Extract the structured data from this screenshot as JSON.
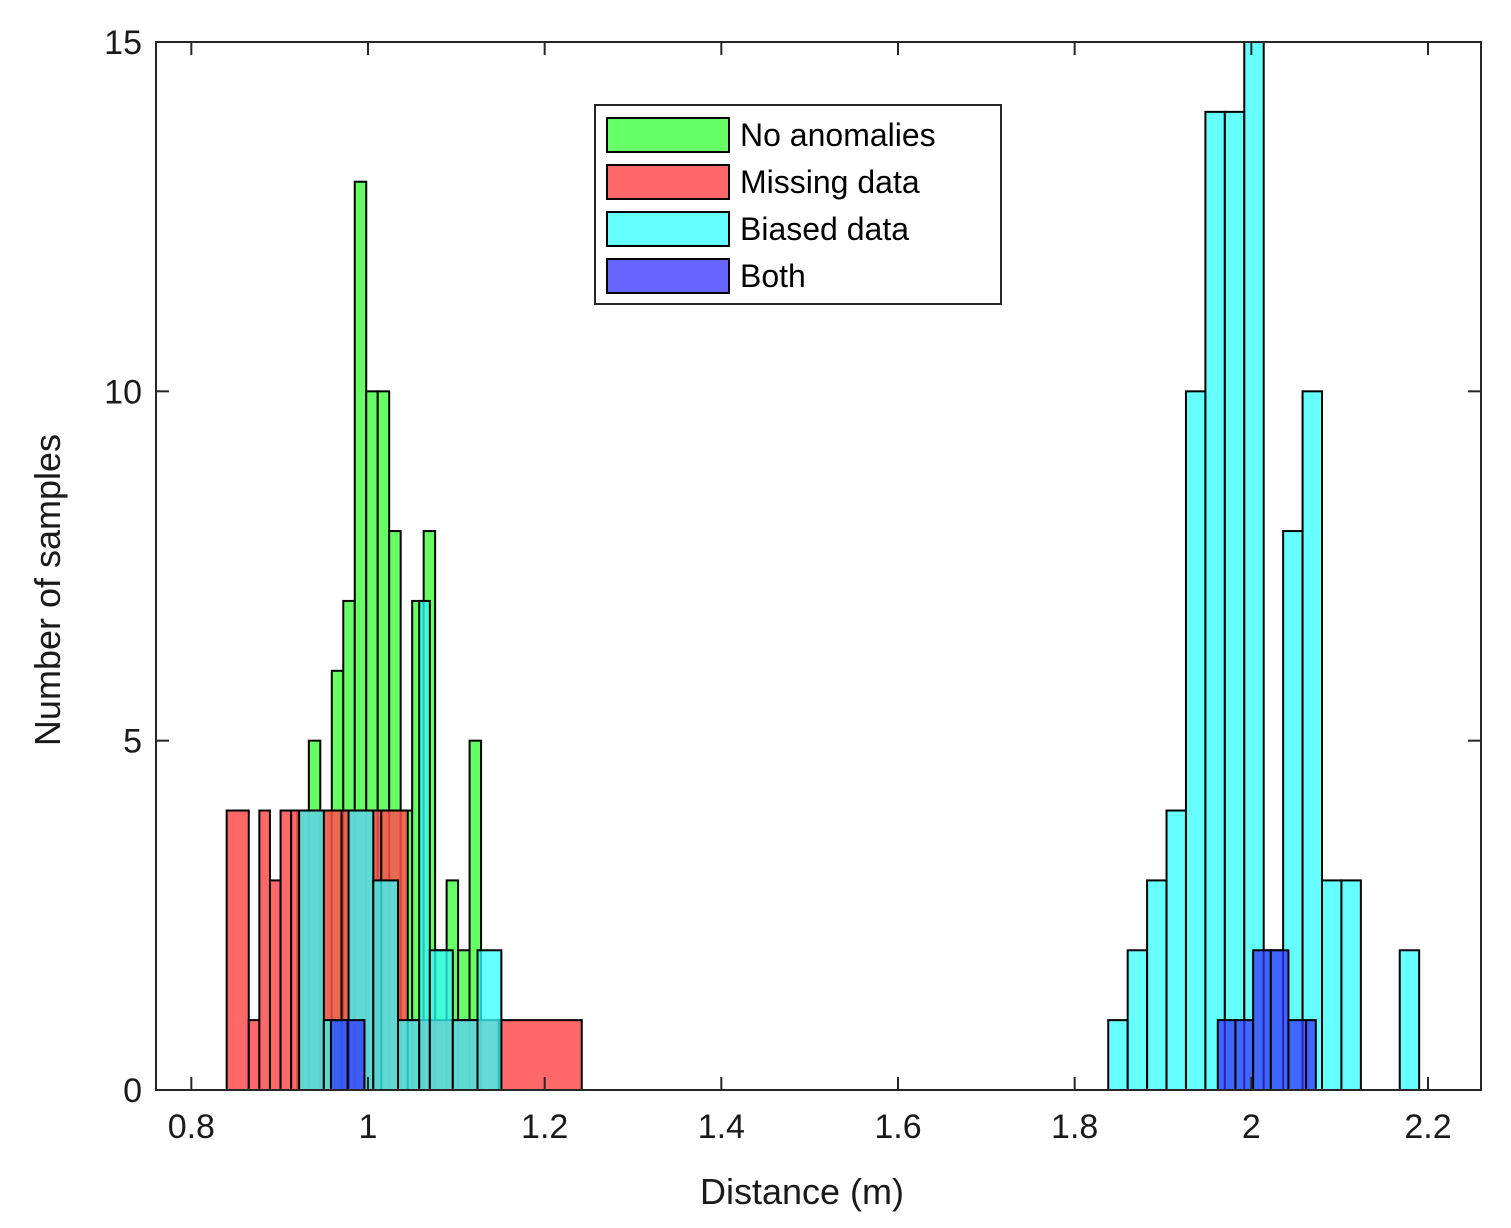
{
  "chart_data": {
    "type": "histogram",
    "title": "",
    "xlabel": "Distance (m)",
    "ylabel": "Number of samples",
    "xlim": [
      0.76,
      2.26
    ],
    "ylim": [
      0,
      15
    ],
    "xticks": [
      {
        "value": 0.8,
        "label": "0.8"
      },
      {
        "value": 1.0,
        "label": "1"
      },
      {
        "value": 1.2,
        "label": "1.2"
      },
      {
        "value": 1.4,
        "label": "1.4"
      },
      {
        "value": 1.6,
        "label": "1.6"
      },
      {
        "value": 1.8,
        "label": "1.8"
      },
      {
        "value": 2.0,
        "label": "2"
      },
      {
        "value": 2.2,
        "label": "2.2"
      }
    ],
    "yticks": [
      {
        "value": 0,
        "label": "0"
      },
      {
        "value": 5,
        "label": "5"
      },
      {
        "value": 10,
        "label": "10"
      },
      {
        "value": 15,
        "label": "15"
      }
    ],
    "legend_position": "top-center",
    "series": [
      {
        "name": "No anomalies",
        "color": "#66ff66",
        "opacity": 1,
        "bins": [
          {
            "x0": 0.92,
            "x1": 0.933,
            "count": 4
          },
          {
            "x0": 0.933,
            "x1": 0.946,
            "count": 5
          },
          {
            "x0": 0.946,
            "x1": 0.959,
            "count": 4
          },
          {
            "x0": 0.959,
            "x1": 0.972,
            "count": 6
          },
          {
            "x0": 0.972,
            "x1": 0.985,
            "count": 7
          },
          {
            "x0": 0.985,
            "x1": 0.998,
            "count": 13
          },
          {
            "x0": 0.998,
            "x1": 1.011,
            "count": 10
          },
          {
            "x0": 1.011,
            "x1": 1.024,
            "count": 10
          },
          {
            "x0": 1.024,
            "x1": 1.037,
            "count": 8
          },
          {
            "x0": 1.037,
            "x1": 1.05,
            "count": 4
          },
          {
            "x0": 1.05,
            "x1": 1.063,
            "count": 7
          },
          {
            "x0": 1.063,
            "x1": 1.076,
            "count": 8
          },
          {
            "x0": 1.076,
            "x1": 1.089,
            "count": 2
          },
          {
            "x0": 1.089,
            "x1": 1.102,
            "count": 3
          },
          {
            "x0": 1.102,
            "x1": 1.115,
            "count": 2
          },
          {
            "x0": 1.115,
            "x1": 1.128,
            "count": 5
          }
        ]
      },
      {
        "name": "Missing data",
        "color": "#ff4d4d",
        "opacity": 0.85,
        "bins": [
          {
            "x0": 0.84,
            "x1": 0.865,
            "count": 4
          },
          {
            "x0": 0.865,
            "x1": 0.877,
            "count": 1
          },
          {
            "x0": 0.877,
            "x1": 0.889,
            "count": 4
          },
          {
            "x0": 0.889,
            "x1": 0.901,
            "count": 3
          },
          {
            "x0": 0.901,
            "x1": 0.913,
            "count": 4
          },
          {
            "x0": 0.913,
            "x1": 0.97,
            "count": 4
          },
          {
            "x0": 0.97,
            "x1": 1.015,
            "count": 4
          },
          {
            "x0": 1.015,
            "x1": 1.045,
            "count": 4
          },
          {
            "x0": 1.045,
            "x1": 1.148,
            "count": 1
          },
          {
            "x0": 1.148,
            "x1": 1.242,
            "count": 1
          }
        ]
      },
      {
        "name": "Biased data",
        "color": "#33ffff",
        "opacity": 0.75,
        "bins": [
          {
            "x0": 0.922,
            "x1": 0.95,
            "count": 4
          },
          {
            "x0": 0.95,
            "x1": 0.978,
            "count": 1
          },
          {
            "x0": 0.978,
            "x1": 1.006,
            "count": 4
          },
          {
            "x0": 1.006,
            "x1": 1.034,
            "count": 3
          },
          {
            "x0": 1.034,
            "x1": 1.058,
            "count": 1
          },
          {
            "x0": 1.058,
            "x1": 1.07,
            "count": 7
          },
          {
            "x0": 1.07,
            "x1": 1.096,
            "count": 2
          },
          {
            "x0": 1.096,
            "x1": 1.124,
            "count": 1
          },
          {
            "x0": 1.124,
            "x1": 1.151,
            "count": 2
          },
          {
            "x0": 1.838,
            "x1": 1.86,
            "count": 1
          },
          {
            "x0": 1.86,
            "x1": 1.882,
            "count": 2
          },
          {
            "x0": 1.882,
            "x1": 1.904,
            "count": 3
          },
          {
            "x0": 1.904,
            "x1": 1.926,
            "count": 4
          },
          {
            "x0": 1.926,
            "x1": 1.948,
            "count": 10
          },
          {
            "x0": 1.948,
            "x1": 1.97,
            "count": 14
          },
          {
            "x0": 1.97,
            "x1": 1.992,
            "count": 14
          },
          {
            "x0": 1.992,
            "x1": 2.014,
            "count": 15
          },
          {
            "x0": 2.014,
            "x1": 2.036,
            "count": 2
          },
          {
            "x0": 2.036,
            "x1": 2.058,
            "count": 8
          },
          {
            "x0": 2.058,
            "x1": 2.08,
            "count": 10
          },
          {
            "x0": 2.08,
            "x1": 2.102,
            "count": 3
          },
          {
            "x0": 2.102,
            "x1": 2.124,
            "count": 3
          },
          {
            "x0": 2.168,
            "x1": 2.19,
            "count": 2
          }
        ]
      },
      {
        "name": "Both",
        "color": "#3333ff",
        "opacity": 0.75,
        "bins": [
          {
            "x0": 0.958,
            "x1": 0.977,
            "count": 1
          },
          {
            "x0": 0.977,
            "x1": 0.996,
            "count": 1
          },
          {
            "x0": 1.962,
            "x1": 1.982,
            "count": 1
          },
          {
            "x0": 1.982,
            "x1": 2.002,
            "count": 1
          },
          {
            "x0": 2.002,
            "x1": 2.022,
            "count": 2
          },
          {
            "x0": 2.022,
            "x1": 2.042,
            "count": 2
          },
          {
            "x0": 2.042,
            "x1": 2.062,
            "count": 1
          },
          {
            "x0": 2.062,
            "x1": 2.073,
            "count": 1
          }
        ]
      }
    ]
  }
}
